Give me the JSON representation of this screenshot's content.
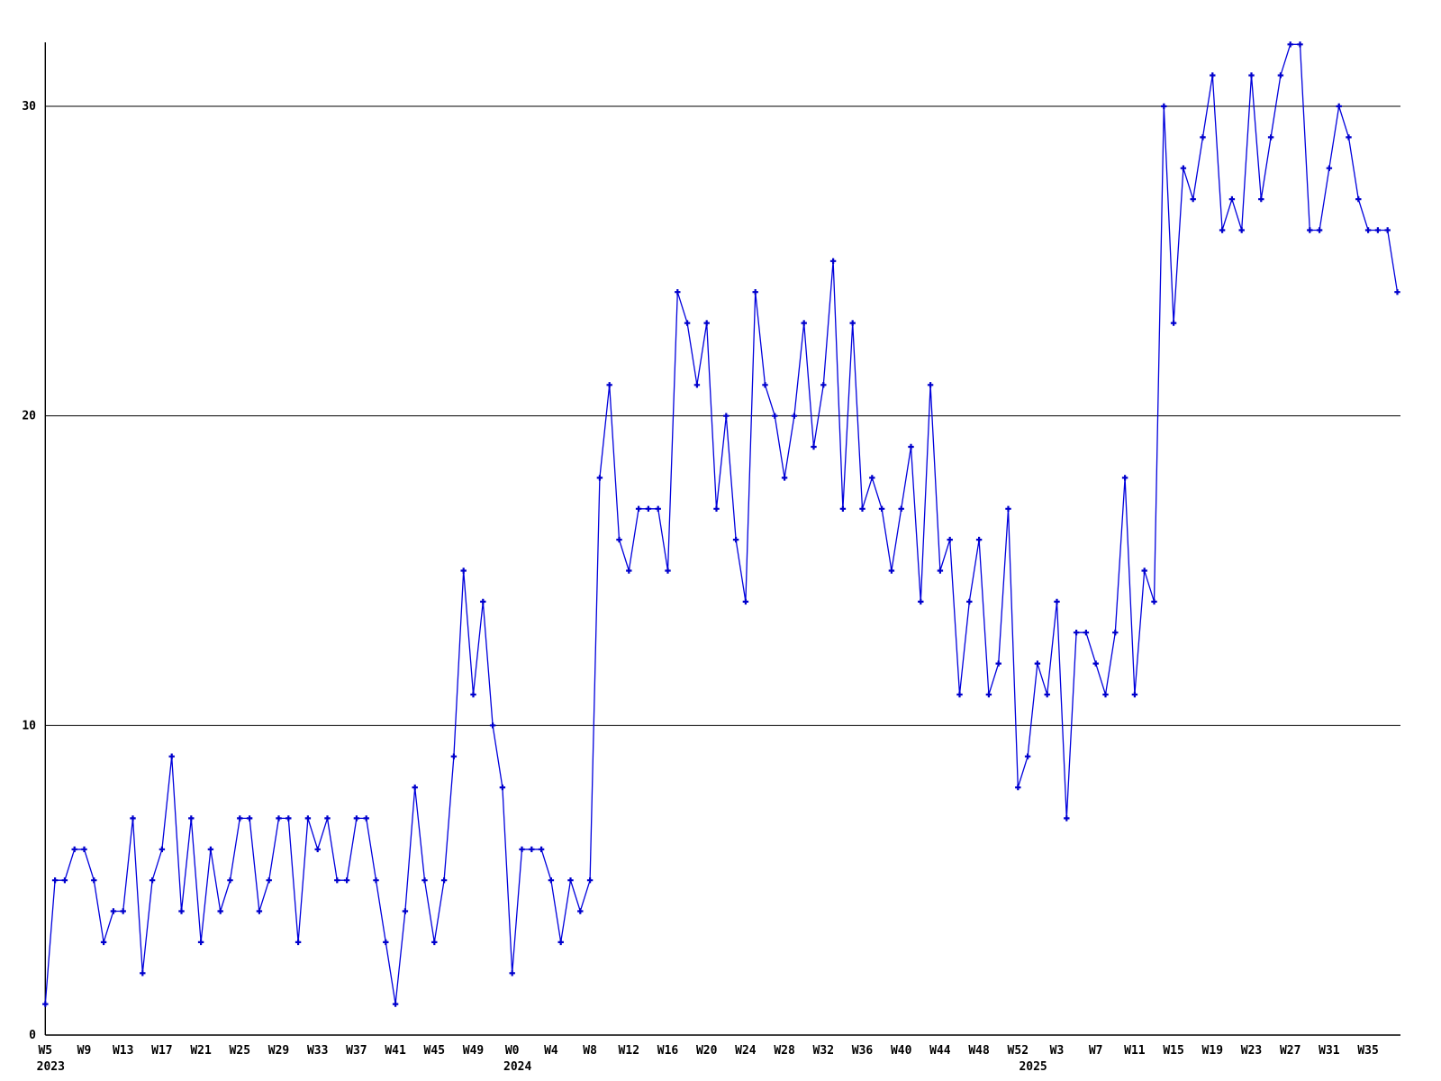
{
  "chart_data": {
    "type": "line",
    "title": "",
    "xlabel": "",
    "ylabel": "",
    "legend": "none",
    "grid": "horizontal",
    "background_color": "#ffffff",
    "series_color": "#0000dd",
    "marker_color": "#0000cc",
    "grid_color": "#000000",
    "axis_color": "#000000",
    "marker_shape": "plus",
    "ylim": [
      0,
      32.9
    ],
    "yticks": [
      0,
      10,
      20,
      30
    ],
    "x_tick_interval_weeks": 4,
    "week_label_prefix": "W",
    "years": [
      {
        "year": "2023",
        "first_week": 5,
        "first_labeled_week": 5,
        "tick_labels": [
          "W5",
          "W9",
          "W13",
          "W17",
          "W21",
          "W25",
          "W29",
          "W33",
          "W37",
          "W41",
          "W45",
          "W49"
        ],
        "values": [
          1,
          5,
          5,
          6,
          6,
          5,
          3,
          4,
          4,
          7,
          2,
          5,
          6,
          9,
          4,
          7,
          3,
          6,
          4,
          5,
          7,
          7,
          4,
          5,
          7,
          7,
          3,
          7,
          6,
          7,
          5,
          5,
          7,
          7,
          5,
          3,
          1,
          4,
          8,
          5,
          3,
          5,
          9,
          15,
          11,
          14,
          10,
          8
        ]
      },
      {
        "year": "2024",
        "first_week": 0,
        "first_labeled_week": 0,
        "tick_labels": [
          "W0",
          "W4",
          "W8",
          "W12",
          "W16",
          "W20",
          "W24",
          "W28",
          "W32",
          "W36",
          "W40",
          "W44",
          "W48",
          "W52"
        ],
        "values": [
          2,
          6,
          6,
          6,
          5,
          3,
          5,
          4,
          5,
          18,
          21,
          16,
          15,
          17,
          17,
          17,
          15,
          24,
          23,
          21,
          23,
          17,
          20,
          16,
          14,
          24,
          21,
          20,
          18,
          20,
          23,
          19,
          21,
          25,
          17,
          23,
          17,
          18,
          17,
          15,
          17,
          19,
          14,
          21,
          15,
          16,
          11,
          14,
          16,
          11,
          12,
          17,
          8
        ]
      },
      {
        "year": "2025",
        "first_week": 0,
        "first_labeled_week": 3,
        "tick_labels": [
          "W3",
          "W7",
          "W11",
          "W15",
          "W19",
          "W23",
          "W27",
          "W31",
          "W35"
        ],
        "values": [
          9,
          12,
          11,
          14,
          7,
          13,
          13,
          12,
          11,
          13,
          18,
          11,
          15,
          14,
          30,
          23,
          28,
          27,
          29,
          31,
          26,
          27,
          26,
          31,
          27,
          29,
          31,
          32,
          32,
          26,
          26,
          28,
          30,
          29,
          27,
          26,
          26,
          26,
          24
        ]
      }
    ]
  }
}
